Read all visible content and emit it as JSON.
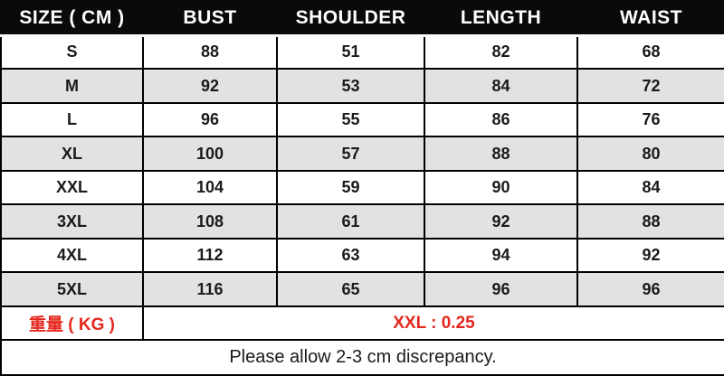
{
  "colors": {
    "header_bg": "#0a0a0a",
    "header_text": "#ffffff",
    "border": "#000000",
    "row_bg": "#ffffff",
    "row_alt_bg": "#e2e2e2",
    "body_text": "#1a1a1a",
    "accent_red": "#e5281e"
  },
  "table": {
    "headers": [
      "SIZE ( CM )",
      "BUST",
      "SHOULDER",
      "LENGTH",
      "WAIST"
    ],
    "rows": [
      {
        "size": "S",
        "bust": "88",
        "shoulder": "51",
        "length": "82",
        "waist": "68"
      },
      {
        "size": "M",
        "bust": "92",
        "shoulder": "53",
        "length": "84",
        "waist": "72"
      },
      {
        "size": "L",
        "bust": "96",
        "shoulder": "55",
        "length": "86",
        "waist": "76"
      },
      {
        "size": "XL",
        "bust": "100",
        "shoulder": "57",
        "length": "88",
        "waist": "80"
      },
      {
        "size": "XXL",
        "bust": "104",
        "shoulder": "59",
        "length": "90",
        "waist": "84"
      },
      {
        "size": "3XL",
        "bust": "108",
        "shoulder": "61",
        "length": "92",
        "waist": "88"
      },
      {
        "size": "4XL",
        "bust": "112",
        "shoulder": "63",
        "length": "94",
        "waist": "92"
      },
      {
        "size": "5XL",
        "bust": "116",
        "shoulder": "65",
        "length": "96",
        "waist": "96"
      }
    ],
    "weight": {
      "label": "重量 ( KG )",
      "value": "XXL : 0.25"
    },
    "footer_note": "Please allow 2-3 cm discrepancy."
  },
  "chart_data": {
    "type": "table",
    "columns": [
      "SIZE ( CM )",
      "BUST",
      "SHOULDER",
      "LENGTH",
      "WAIST"
    ],
    "rows": [
      [
        "S",
        88,
        51,
        82,
        68
      ],
      [
        "M",
        92,
        53,
        84,
        72
      ],
      [
        "L",
        96,
        55,
        86,
        76
      ],
      [
        "XL",
        100,
        57,
        88,
        80
      ],
      [
        "XXL",
        104,
        59,
        90,
        84
      ],
      [
        "3XL",
        108,
        61,
        92,
        88
      ],
      [
        "4XL",
        112,
        63,
        94,
        92
      ],
      [
        "5XL",
        116,
        65,
        96,
        96
      ]
    ],
    "extra_rows": [
      [
        "重量 ( KG )",
        "XXL : 0.25"
      ],
      [
        "Please allow 2-3 cm discrepancy."
      ]
    ]
  }
}
